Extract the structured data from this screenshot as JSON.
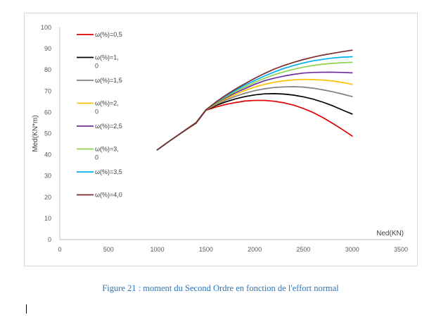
{
  "caption": "Figure 21 : moment du Second Ordre en fonction de l'effort normal",
  "chart_data": {
    "type": "line",
    "title": "",
    "xlabel": "Ned(KN)",
    "ylabel": "Med(KN*m)",
    "xlim": [
      0,
      3500
    ],
    "ylim": [
      0,
      100
    ],
    "xticks": [
      0,
      500,
      1000,
      1500,
      2000,
      2500,
      3000,
      3500
    ],
    "yticks": [
      0,
      10,
      20,
      30,
      40,
      50,
      60,
      70,
      80,
      90,
      100
    ],
    "grid": false,
    "legend_position": "left",
    "x": [
      1000,
      1100,
      1200,
      1300,
      1400,
      1500,
      1600,
      1700,
      1800,
      1900,
      2000,
      2100,
      2200,
      2300,
      2400,
      2500,
      2600,
      2700,
      2800,
      2900,
      3000
    ],
    "series": [
      {
        "name": "ω(%)=0,5",
        "color": "#e00000",
        "values": [
          42.3,
          45.6,
          48.8,
          51.9,
          54.9,
          61.0,
          62.5,
          63.7,
          64.6,
          65.3,
          65.6,
          65.6,
          65.2,
          64.5,
          63.4,
          61.8,
          59.9,
          57.5,
          54.8,
          51.9,
          48.8
        ]
      },
      {
        "name": "ω(%)=1,0",
        "color": "#000000",
        "values": [
          42.3,
          45.6,
          48.8,
          51.9,
          55.0,
          61.0,
          63.2,
          64.9,
          66.3,
          67.4,
          68.2,
          68.7,
          68.8,
          68.6,
          68.1,
          67.3,
          66.2,
          64.8,
          63.1,
          61.1,
          59.2
        ]
      },
      {
        "name": "ω(%)=1,5",
        "color": "#808080",
        "values": [
          42.3,
          45.6,
          48.8,
          52.0,
          55.1,
          61.1,
          63.6,
          65.7,
          67.5,
          69.0,
          70.2,
          71.1,
          71.7,
          72.0,
          72.1,
          71.9,
          71.4,
          70.6,
          69.7,
          68.6,
          67.4
        ]
      },
      {
        "name": "ω(%)=2,0",
        "color": "#ffc000",
        "values": [
          42.3,
          45.6,
          48.8,
          52.0,
          55.1,
          61.1,
          63.9,
          66.3,
          68.4,
          70.3,
          71.9,
          73.2,
          74.2,
          74.9,
          75.3,
          75.5,
          75.4,
          75.2,
          74.8,
          74.1,
          73.2
        ]
      },
      {
        "name": "ω(%)=2,5",
        "color": "#7030a0",
        "values": [
          42.3,
          45.6,
          48.8,
          52.0,
          55.2,
          61.2,
          64.2,
          66.8,
          69.1,
          71.2,
          73.2,
          74.9,
          76.1,
          77.1,
          77.9,
          78.5,
          78.8,
          78.9,
          78.9,
          78.8,
          78.6
        ]
      },
      {
        "name": "ω(%)=3,0",
        "color": "#92d050",
        "values": [
          42.3,
          45.6,
          48.8,
          52.0,
          55.2,
          61.2,
          64.4,
          67.2,
          69.8,
          72.0,
          74.1,
          76.0,
          77.7,
          79.1,
          80.3,
          81.3,
          82.1,
          82.7,
          83.1,
          83.4,
          83.6
        ]
      },
      {
        "name": "ω(%)=3,5",
        "color": "#00b0f0",
        "values": [
          42.3,
          45.6,
          48.8,
          52.0,
          55.2,
          61.2,
          64.6,
          67.6,
          70.3,
          72.8,
          75.0,
          77.1,
          79.0,
          80.7,
          82.1,
          83.3,
          84.3,
          85.0,
          85.6,
          86.0,
          86.2
        ]
      },
      {
        "name": "ω(%)=4,0",
        "color": "#7b2c2c",
        "values": [
          42.3,
          45.6,
          48.8,
          52.0,
          55.2,
          61.2,
          64.8,
          68.0,
          70.9,
          73.5,
          76.0,
          78.3,
          80.4,
          82.1,
          83.6,
          84.9,
          86.0,
          87.0,
          87.8,
          88.6,
          89.3
        ]
      }
    ]
  }
}
